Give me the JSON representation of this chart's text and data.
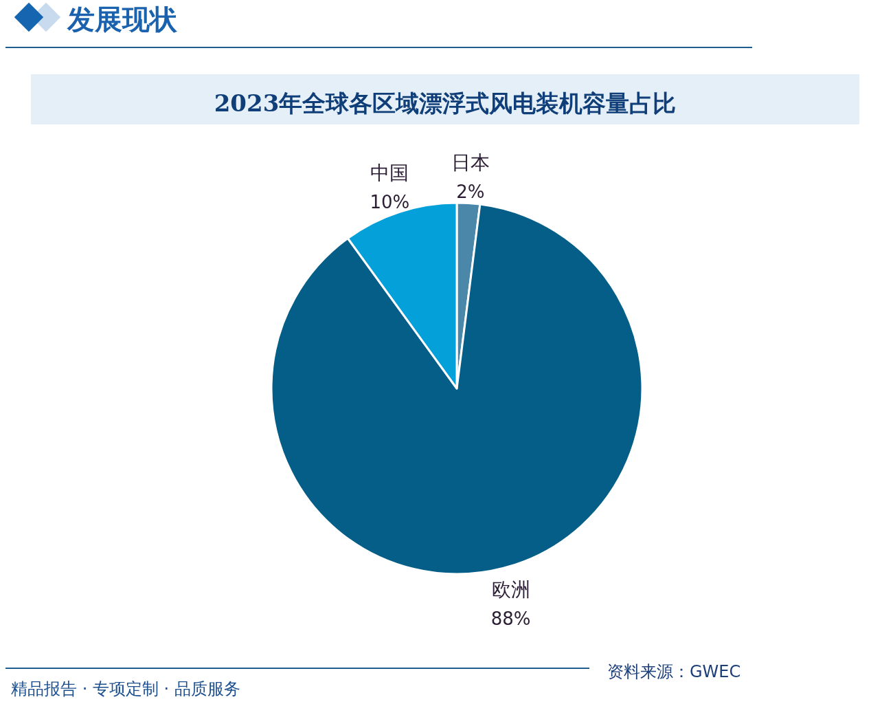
{
  "chart_data": {
    "type": "pie",
    "title": "2023年全球各区域漂浮式风电装机容量占比",
    "categories": [
      "日本",
      "欧洲",
      "中国"
    ],
    "values": [
      2,
      88,
      10
    ],
    "colors": [
      "#4a87a8",
      "#045e87",
      "#03a0d9"
    ],
    "value_labels": [
      "2%",
      "88%",
      "10%"
    ],
    "annotations": [
      "发展现状",
      "资料来源：GWEC",
      "精品报告 · 专项定制 · 品质服务"
    ]
  }
}
